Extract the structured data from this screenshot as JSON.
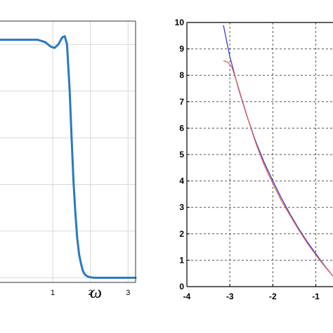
{
  "chart_data": [
    {
      "type": "line",
      "title": "",
      "xlabel": "ω",
      "ylabel": "",
      "xlim": [
        -0.4,
        3.2
      ],
      "ylim": [
        -0.02,
        1.1
      ],
      "grid": true,
      "x_ticks": [
        1,
        2,
        3
      ],
      "x_tick_labels": [
        "1",
        "2",
        "3"
      ],
      "y_gridlines": [
        0,
        0.2,
        0.4,
        0.6,
        0.8,
        1.0
      ],
      "series": [
        {
          "color": "#2a78c2",
          "x": [
            -0.4,
            -0.2,
            0.0,
            0.2,
            0.4,
            0.6,
            0.8,
            0.95,
            1.05,
            1.15,
            1.25,
            1.32,
            1.38,
            1.45,
            1.5,
            1.55,
            1.6,
            1.65,
            1.7,
            1.75,
            1.8,
            1.85,
            1.9,
            1.95,
            2.0,
            2.1,
            2.3,
            2.6,
            3.0,
            3.2
          ],
          "y": [
            1.02,
            1.02,
            1.02,
            1.02,
            1.02,
            1.02,
            1.01,
            0.99,
            0.985,
            1.0,
            1.03,
            1.035,
            1.0,
            0.8,
            0.6,
            0.42,
            0.28,
            0.17,
            0.1,
            0.06,
            0.03,
            0.015,
            0.008,
            0.004,
            0.002,
            0.0,
            0.0,
            0.0,
            0.0,
            0.0
          ]
        }
      ]
    },
    {
      "type": "line",
      "title": "",
      "xlabel": "",
      "ylabel": "",
      "xlim": [
        -4,
        -0.6
      ],
      "ylim": [
        0,
        10
      ],
      "grid": true,
      "grid_style": "dashed",
      "x_ticks": [
        -4,
        -3,
        -2,
        -1
      ],
      "x_tick_labels": [
        "-4",
        "-3",
        "-2",
        "-1"
      ],
      "y_ticks": [
        0,
        1,
        2,
        3,
        4,
        5,
        6,
        7,
        8,
        9,
        10
      ],
      "y_tick_labels": [
        "0",
        "1",
        "2",
        "3",
        "4",
        "5",
        "6",
        "7",
        "8",
        "9",
        "10"
      ],
      "series": [
        {
          "color": "#3a3ad6",
          "x": [
            -3.15,
            -3.0,
            -2.8,
            -2.6,
            -2.4,
            -2.2,
            -2.0,
            -1.8,
            -1.6,
            -1.4,
            -1.2,
            -1.0,
            -0.8,
            -0.6
          ],
          "y": [
            9.9,
            8.7,
            7.5,
            6.45,
            5.5,
            4.7,
            4.0,
            3.35,
            2.75,
            2.2,
            1.7,
            1.25,
            0.8,
            0.4
          ]
        },
        {
          "color": "#e0604f",
          "x": [
            -3.15,
            -3.05,
            -2.95,
            -2.85,
            -2.7,
            -2.55,
            -2.4,
            -2.2,
            -2.0,
            -1.8,
            -1.6,
            -1.4,
            -1.2,
            -1.0,
            -0.8,
            -0.6
          ],
          "y": [
            8.55,
            8.5,
            8.3,
            7.8,
            7.0,
            6.2,
            5.45,
            4.6,
            3.9,
            3.25,
            2.7,
            2.15,
            1.65,
            1.2,
            0.78,
            0.4
          ]
        }
      ]
    }
  ]
}
